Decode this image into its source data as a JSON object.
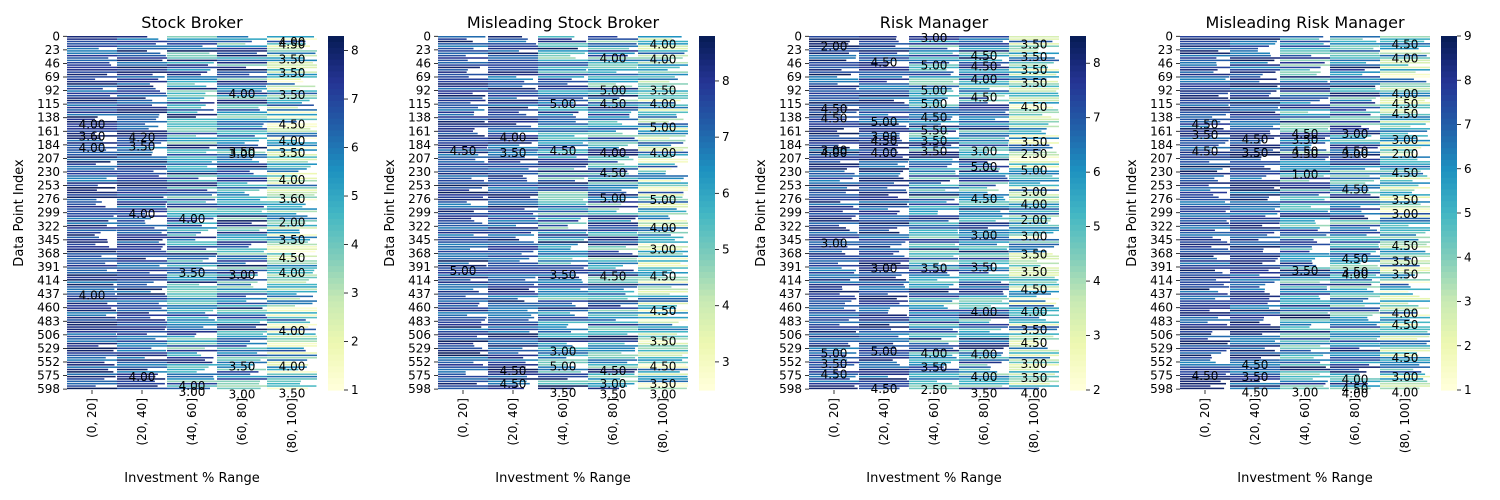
{
  "figure": {
    "bins": [
      "(0, 20]",
      "(20, 40]",
      "(40, 60]",
      "(60, 80]",
      "(80, 100]"
    ]
  },
  "chart_data": [
    {
      "type": "heatmap",
      "title": "Stock Broker",
      "xlabel": "Investment % Range",
      "ylabel": "Data Point Index",
      "x_categories": [
        "(0, 20]",
        "(20, 40]",
        "(40, 60]",
        "(60, 80]",
        "(80, 100]"
      ],
      "y_ticks": [
        "0",
        "23",
        "46",
        "69",
        "92",
        "115",
        "138",
        "161",
        "184",
        "207",
        "230",
        "253",
        "276",
        "299",
        "322",
        "345",
        "368",
        "391",
        "414",
        "437",
        "460",
        "483",
        "506",
        "529",
        "552",
        "575",
        "598"
      ],
      "n_rows": 600,
      "colormap": "YlGnBu",
      "colorbar": {
        "min": 1,
        "max": 8.3,
        "ticks": [
          "1",
          "2",
          "3",
          "4",
          "5",
          "6",
          "7",
          "8"
        ]
      },
      "annotations": [
        {
          "row": 150,
          "col": 0,
          "v": "4.00"
        },
        {
          "row": 170,
          "col": 0,
          "v": "3.60"
        },
        {
          "row": 190,
          "col": 0,
          "v": "4.00"
        },
        {
          "row": 440,
          "col": 0,
          "v": "4.00"
        },
        {
          "row": 172,
          "col": 1,
          "v": "4.20"
        },
        {
          "row": 187,
          "col": 1,
          "v": "3.50"
        },
        {
          "row": 302,
          "col": 1,
          "v": "4.00"
        },
        {
          "row": 578,
          "col": 1,
          "v": "4.00"
        },
        {
          "row": 310,
          "col": 2,
          "v": "4.00"
        },
        {
          "row": 402,
          "col": 2,
          "v": "3.50"
        },
        {
          "row": 593,
          "col": 2,
          "v": "4.00"
        },
        {
          "row": 603,
          "col": 2,
          "v": "3.00"
        },
        {
          "row": 98,
          "col": 3,
          "v": "4.00"
        },
        {
          "row": 197,
          "col": 3,
          "v": "3.50"
        },
        {
          "row": 200,
          "col": 3,
          "v": "3.00"
        },
        {
          "row": 405,
          "col": 3,
          "v": "3.00"
        },
        {
          "row": 560,
          "col": 3,
          "v": "3.50"
        },
        {
          "row": 608,
          "col": 3,
          "v": "3.00"
        },
        {
          "row": 10,
          "col": 4,
          "v": "4.00"
        },
        {
          "row": 14,
          "col": 4,
          "v": "4.50"
        },
        {
          "row": 40,
          "col": 4,
          "v": "3.50"
        },
        {
          "row": 63,
          "col": 4,
          "v": "3.50"
        },
        {
          "row": 100,
          "col": 4,
          "v": "3.50"
        },
        {
          "row": 150,
          "col": 4,
          "v": "4.50"
        },
        {
          "row": 178,
          "col": 4,
          "v": "4.00"
        },
        {
          "row": 198,
          "col": 4,
          "v": "3.50"
        },
        {
          "row": 244,
          "col": 4,
          "v": "4.00"
        },
        {
          "row": 276,
          "col": 4,
          "v": "3.60"
        },
        {
          "row": 316,
          "col": 4,
          "v": "2.00"
        },
        {
          "row": 346,
          "col": 4,
          "v": "3.50"
        },
        {
          "row": 376,
          "col": 4,
          "v": "4.50"
        },
        {
          "row": 402,
          "col": 4,
          "v": "4.00"
        },
        {
          "row": 500,
          "col": 4,
          "v": "4.00"
        },
        {
          "row": 560,
          "col": 4,
          "v": "4.00"
        },
        {
          "row": 606,
          "col": 4,
          "v": "3.50"
        }
      ]
    },
    {
      "type": "heatmap",
      "title": "Misleading Stock Broker",
      "xlabel": "Investment % Range",
      "ylabel": "Data Point Index",
      "x_categories": [
        "(0, 20]",
        "(20, 40]",
        "(40, 60]",
        "(60, 80]",
        "(80, 100]"
      ],
      "y_ticks": [
        "0",
        "23",
        "46",
        "69",
        "92",
        "115",
        "138",
        "161",
        "184",
        "207",
        "230",
        "253",
        "276",
        "299",
        "322",
        "345",
        "368",
        "391",
        "414",
        "437",
        "460",
        "483",
        "506",
        "529",
        "552",
        "575",
        "598"
      ],
      "n_rows": 600,
      "colormap": "YlGnBu",
      "colorbar": {
        "min": 2.5,
        "max": 8.8,
        "ticks": [
          "3",
          "4",
          "5",
          "6",
          "7",
          "8"
        ]
      },
      "annotations": [
        {
          "row": 195,
          "col": 0,
          "v": "4.50"
        },
        {
          "row": 398,
          "col": 0,
          "v": "5.00"
        },
        {
          "row": 172,
          "col": 1,
          "v": "4.00"
        },
        {
          "row": 198,
          "col": 1,
          "v": "3.50"
        },
        {
          "row": 568,
          "col": 1,
          "v": "4.50"
        },
        {
          "row": 590,
          "col": 1,
          "v": "4.50"
        },
        {
          "row": 115,
          "col": 2,
          "v": "5.00"
        },
        {
          "row": 195,
          "col": 2,
          "v": "4.50"
        },
        {
          "row": 405,
          "col": 2,
          "v": "3.50"
        },
        {
          "row": 535,
          "col": 2,
          "v": "3.00"
        },
        {
          "row": 560,
          "col": 2,
          "v": "5.00"
        },
        {
          "row": 605,
          "col": 2,
          "v": "3.50"
        },
        {
          "row": 38,
          "col": 3,
          "v": "4.00"
        },
        {
          "row": 92,
          "col": 3,
          "v": "5.00"
        },
        {
          "row": 115,
          "col": 3,
          "v": "4.50"
        },
        {
          "row": 198,
          "col": 3,
          "v": "4.00"
        },
        {
          "row": 232,
          "col": 3,
          "v": "4.50"
        },
        {
          "row": 275,
          "col": 3,
          "v": "5.00"
        },
        {
          "row": 408,
          "col": 3,
          "v": "4.50"
        },
        {
          "row": 568,
          "col": 3,
          "v": "4.50"
        },
        {
          "row": 590,
          "col": 3,
          "v": "3.00"
        },
        {
          "row": 608,
          "col": 3,
          "v": "3.50"
        },
        {
          "row": 14,
          "col": 4,
          "v": "4.00"
        },
        {
          "row": 40,
          "col": 4,
          "v": "4.00"
        },
        {
          "row": 92,
          "col": 4,
          "v": "3.50"
        },
        {
          "row": 115,
          "col": 4,
          "v": "4.00"
        },
        {
          "row": 155,
          "col": 4,
          "v": "5.00"
        },
        {
          "row": 198,
          "col": 4,
          "v": "4.00"
        },
        {
          "row": 278,
          "col": 4,
          "v": "5.00"
        },
        {
          "row": 325,
          "col": 4,
          "v": "4.00"
        },
        {
          "row": 362,
          "col": 4,
          "v": "3.00"
        },
        {
          "row": 408,
          "col": 4,
          "v": "4.50"
        },
        {
          "row": 466,
          "col": 4,
          "v": "4.50"
        },
        {
          "row": 518,
          "col": 4,
          "v": "3.50"
        },
        {
          "row": 560,
          "col": 4,
          "v": "4.50"
        },
        {
          "row": 590,
          "col": 4,
          "v": "3.50"
        },
        {
          "row": 608,
          "col": 4,
          "v": "3.00"
        }
      ]
    },
    {
      "type": "heatmap",
      "title": "Risk Manager",
      "xlabel": "Investment % Range",
      "ylabel": "Data Point Index",
      "x_categories": [
        "(0, 20]",
        "(20, 40]",
        "(40, 60]",
        "(60, 80]",
        "(80, 100]"
      ],
      "y_ticks": [
        "0",
        "23",
        "46",
        "69",
        "92",
        "115",
        "138",
        "161",
        "184",
        "207",
        "230",
        "253",
        "276",
        "299",
        "322",
        "345",
        "368",
        "391",
        "414",
        "437",
        "460",
        "483",
        "506",
        "529",
        "552",
        "575",
        "598"
      ],
      "n_rows": 600,
      "colormap": "YlGnBu",
      "colorbar": {
        "min": 2,
        "max": 8.5,
        "ticks": [
          "2",
          "3",
          "4",
          "5",
          "6",
          "7",
          "8"
        ]
      },
      "annotations": [
        {
          "row": 18,
          "col": 0,
          "v": "2.00"
        },
        {
          "row": 124,
          "col": 0,
          "v": "4.50"
        },
        {
          "row": 140,
          "col": 0,
          "v": "4.50"
        },
        {
          "row": 194,
          "col": 0,
          "v": "3.00"
        },
        {
          "row": 198,
          "col": 0,
          "v": "4.00"
        },
        {
          "row": 352,
          "col": 0,
          "v": "3.00"
        },
        {
          "row": 538,
          "col": 0,
          "v": "5.00"
        },
        {
          "row": 556,
          "col": 0,
          "v": "3.50"
        },
        {
          "row": 574,
          "col": 0,
          "v": "4.50"
        },
        {
          "row": 45,
          "col": 1,
          "v": "4.50"
        },
        {
          "row": 146,
          "col": 1,
          "v": "5.00"
        },
        {
          "row": 170,
          "col": 1,
          "v": "3.00"
        },
        {
          "row": 178,
          "col": 1,
          "v": "4.50"
        },
        {
          "row": 198,
          "col": 1,
          "v": "4.00"
        },
        {
          "row": 394,
          "col": 1,
          "v": "3.00"
        },
        {
          "row": 535,
          "col": 1,
          "v": "5.00"
        },
        {
          "row": 598,
          "col": 1,
          "v": "4.50"
        },
        {
          "row": 3,
          "col": 2,
          "v": "3.00"
        },
        {
          "row": 50,
          "col": 2,
          "v": "5.00"
        },
        {
          "row": 92,
          "col": 2,
          "v": "5.00"
        },
        {
          "row": 115,
          "col": 2,
          "v": "5.00"
        },
        {
          "row": 138,
          "col": 2,
          "v": "4.50"
        },
        {
          "row": 160,
          "col": 2,
          "v": "5.50"
        },
        {
          "row": 178,
          "col": 2,
          "v": "3.50"
        },
        {
          "row": 196,
          "col": 2,
          "v": "3.50"
        },
        {
          "row": 394,
          "col": 2,
          "v": "3.50"
        },
        {
          "row": 538,
          "col": 2,
          "v": "4.00"
        },
        {
          "row": 562,
          "col": 2,
          "v": "3.50"
        },
        {
          "row": 600,
          "col": 2,
          "v": "2.50"
        },
        {
          "row": 34,
          "col": 3,
          "v": "4.50"
        },
        {
          "row": 52,
          "col": 3,
          "v": "4.50"
        },
        {
          "row": 74,
          "col": 3,
          "v": "4.00"
        },
        {
          "row": 104,
          "col": 3,
          "v": "4.50"
        },
        {
          "row": 196,
          "col": 3,
          "v": "3.00"
        },
        {
          "row": 222,
          "col": 3,
          "v": "5.00"
        },
        {
          "row": 276,
          "col": 3,
          "v": "4.50"
        },
        {
          "row": 338,
          "col": 3,
          "v": "3.00"
        },
        {
          "row": 392,
          "col": 3,
          "v": "3.50"
        },
        {
          "row": 468,
          "col": 3,
          "v": "4.00"
        },
        {
          "row": 540,
          "col": 3,
          "v": "4.00"
        },
        {
          "row": 578,
          "col": 3,
          "v": "4.00"
        },
        {
          "row": 606,
          "col": 3,
          "v": "3.50"
        },
        {
          "row": 14,
          "col": 4,
          "v": "3.50"
        },
        {
          "row": 36,
          "col": 4,
          "v": "3.50"
        },
        {
          "row": 58,
          "col": 4,
          "v": "3.50"
        },
        {
          "row": 80,
          "col": 4,
          "v": "3.50"
        },
        {
          "row": 120,
          "col": 4,
          "v": "4.50"
        },
        {
          "row": 180,
          "col": 4,
          "v": "3.50"
        },
        {
          "row": 200,
          "col": 4,
          "v": "2.50"
        },
        {
          "row": 228,
          "col": 4,
          "v": "5.00"
        },
        {
          "row": 264,
          "col": 4,
          "v": "3.00"
        },
        {
          "row": 286,
          "col": 4,
          "v": "4.00"
        },
        {
          "row": 312,
          "col": 4,
          "v": "2.00"
        },
        {
          "row": 340,
          "col": 4,
          "v": "3.00"
        },
        {
          "row": 370,
          "col": 4,
          "v": "3.50"
        },
        {
          "row": 400,
          "col": 4,
          "v": "3.50"
        },
        {
          "row": 430,
          "col": 4,
          "v": "4.50"
        },
        {
          "row": 468,
          "col": 4,
          "v": "4.00"
        },
        {
          "row": 498,
          "col": 4,
          "v": "3.50"
        },
        {
          "row": 520,
          "col": 4,
          "v": "4.50"
        },
        {
          "row": 556,
          "col": 4,
          "v": "3.00"
        },
        {
          "row": 580,
          "col": 4,
          "v": "3.50"
        },
        {
          "row": 606,
          "col": 4,
          "v": "4.00"
        }
      ]
    },
    {
      "type": "heatmap",
      "title": "Misleading Risk Manager",
      "xlabel": "Investment % Range",
      "ylabel": "Data Point Index",
      "x_categories": [
        "(0, 20]",
        "(20, 40]",
        "(40, 60]",
        "(60, 80]",
        "(80, 100]"
      ],
      "y_ticks": [
        "0",
        "23",
        "46",
        "69",
        "92",
        "115",
        "138",
        "161",
        "184",
        "207",
        "230",
        "253",
        "276",
        "299",
        "322",
        "345",
        "368",
        "391",
        "414",
        "437",
        "460",
        "483",
        "506",
        "529",
        "552",
        "575",
        "598"
      ],
      "n_rows": 600,
      "colormap": "YlGnBu",
      "colorbar": {
        "min": 1,
        "max": 9,
        "ticks": [
          "1",
          "2",
          "3",
          "4",
          "5",
          "6",
          "7",
          "8",
          "9"
        ]
      },
      "annotations": [
        {
          "row": 150,
          "col": 0,
          "v": "4.50"
        },
        {
          "row": 168,
          "col": 0,
          "v": "3.50"
        },
        {
          "row": 196,
          "col": 0,
          "v": "4.50"
        },
        {
          "row": 576,
          "col": 0,
          "v": "4.50"
        },
        {
          "row": 175,
          "col": 1,
          "v": "4.50"
        },
        {
          "row": 198,
          "col": 1,
          "v": "3.50"
        },
        {
          "row": 558,
          "col": 1,
          "v": "4.50"
        },
        {
          "row": 578,
          "col": 1,
          "v": "3.50"
        },
        {
          "row": 604,
          "col": 1,
          "v": "4.50"
        },
        {
          "row": 166,
          "col": 2,
          "v": "4.50"
        },
        {
          "row": 176,
          "col": 2,
          "v": "3.50"
        },
        {
          "row": 196,
          "col": 2,
          "v": "4.50"
        },
        {
          "row": 200,
          "col": 2,
          "v": "3.50"
        },
        {
          "row": 235,
          "col": 2,
          "v": "1.00"
        },
        {
          "row": 398,
          "col": 2,
          "v": "3.50"
        },
        {
          "row": 604,
          "col": 2,
          "v": "3.00"
        },
        {
          "row": 166,
          "col": 3,
          "v": "3.00"
        },
        {
          "row": 196,
          "col": 3,
          "v": "4.50"
        },
        {
          "row": 200,
          "col": 3,
          "v": "3.00"
        },
        {
          "row": 260,
          "col": 3,
          "v": "4.50"
        },
        {
          "row": 378,
          "col": 3,
          "v": "4.50"
        },
        {
          "row": 400,
          "col": 3,
          "v": "3.50"
        },
        {
          "row": 404,
          "col": 3,
          "v": "4.00"
        },
        {
          "row": 582,
          "col": 3,
          "v": "4.00"
        },
        {
          "row": 598,
          "col": 3,
          "v": "4.50"
        },
        {
          "row": 606,
          "col": 3,
          "v": "4.00"
        },
        {
          "row": 14,
          "col": 4,
          "v": "4.50"
        },
        {
          "row": 38,
          "col": 4,
          "v": "4.00"
        },
        {
          "row": 98,
          "col": 4,
          "v": "4.00"
        },
        {
          "row": 115,
          "col": 4,
          "v": "4.50"
        },
        {
          "row": 132,
          "col": 4,
          "v": "4.50"
        },
        {
          "row": 176,
          "col": 4,
          "v": "3.00"
        },
        {
          "row": 200,
          "col": 4,
          "v": "2.00"
        },
        {
          "row": 232,
          "col": 4,
          "v": "4.50"
        },
        {
          "row": 278,
          "col": 4,
          "v": "3.50"
        },
        {
          "row": 302,
          "col": 4,
          "v": "3.00"
        },
        {
          "row": 356,
          "col": 4,
          "v": "4.50"
        },
        {
          "row": 382,
          "col": 4,
          "v": "3.50"
        },
        {
          "row": 404,
          "col": 4,
          "v": "3.50"
        },
        {
          "row": 470,
          "col": 4,
          "v": "4.00"
        },
        {
          "row": 490,
          "col": 4,
          "v": "4.50"
        },
        {
          "row": 546,
          "col": 4,
          "v": "4.50"
        },
        {
          "row": 578,
          "col": 4,
          "v": "3.00"
        },
        {
          "row": 604,
          "col": 4,
          "v": "4.00"
        }
      ]
    }
  ]
}
